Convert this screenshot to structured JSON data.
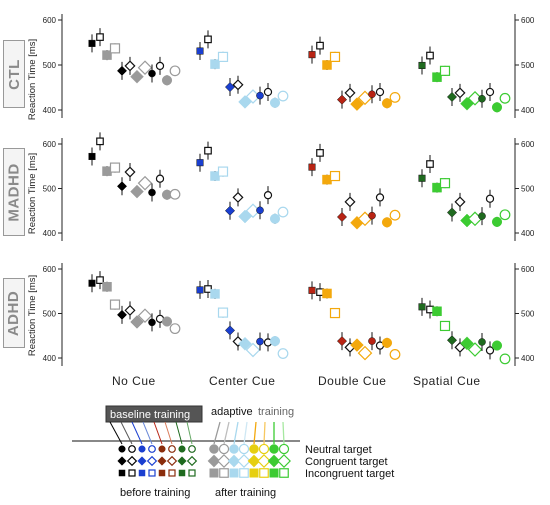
{
  "chart_data": {
    "type": "scatter",
    "panels": [
      {
        "label": "CTL",
        "ylabel": "Reaction Time [ms]",
        "yticks": [
          400,
          500,
          600
        ],
        "ylim": [
          380,
          620
        ]
      },
      {
        "label": "MADHD",
        "ylabel": "Reaction Time [ms]",
        "yticks": [
          400,
          500,
          600
        ],
        "ylim": [
          380,
          620
        ]
      },
      {
        "label": "ADHD",
        "ylabel": "Reaction Time [ms]",
        "yticks": [
          400,
          500,
          600
        ],
        "ylim": [
          380,
          620
        ]
      }
    ],
    "categories": [
      "No Cue",
      "Center Cue",
      "Double Cue",
      "Spatial Cue"
    ],
    "target_types": [
      "Neutral",
      "Congruent",
      "Incongruent"
    ],
    "colors": {
      "No Cue": {
        "dark": "#000000",
        "light": "#9a9a9a"
      },
      "Center Cue": {
        "dark": "#1a3fd0",
        "light": "#a9d8ee"
      },
      "Double Cue": {
        "dark": "#b82414",
        "light": "#f3a80c"
      },
      "Spatial Cue": {
        "dark": "#1f6a1f",
        "light": "#3ccb32"
      }
    },
    "series_note": "values per cue: [Incongruent-before-baseline, Incongruent-before-adaptive, Incongruent-after-baseline, Incongruent-after-adaptive, Congruent-before-baseline, Congruent-before-adaptive, Congruent-after-baseline, Congruent-after-adaptive, Neutral-before-baseline, Neutral-before-adaptive, Neutral-after-baseline, Neutral-after-adaptive]",
    "values": {
      "CTL": {
        "No Cue": [
          548,
          562,
          522,
          537,
          487,
          498,
          474,
          494,
          481,
          498,
          466,
          487
        ],
        "Center Cue": [
          531,
          557,
          502,
          518,
          451,
          456,
          418,
          430,
          432,
          440,
          416,
          431
        ],
        "Double Cue": [
          523,
          543,
          500,
          518,
          423,
          438,
          413,
          427,
          435,
          440,
          415,
          428
        ],
        "Spatial Cue": [
          499,
          521,
          473,
          487,
          429,
          438,
          414,
          426,
          425,
          440,
          406,
          426
        ]
      },
      "MADHD": {
        "No Cue": [
          572,
          606,
          539,
          547,
          505,
          537,
          493,
          512,
          491,
          522,
          486,
          487
        ],
        "Center Cue": [
          558,
          585,
          528,
          538,
          450,
          480,
          437,
          450,
          451,
          485,
          432,
          447
        ],
        "Double Cue": [
          548,
          580,
          520,
          528,
          436,
          470,
          423,
          432,
          439,
          480,
          424,
          440
        ],
        "Spatial Cue": [
          523,
          555,
          502,
          512,
          446,
          470,
          428,
          432,
          438,
          477,
          425,
          441
        ]
      },
      "ADHD": {
        "No Cue": [
          568,
          575,
          560,
          520,
          497,
          507,
          481,
          495,
          480,
          488,
          482,
          466
        ],
        "Center Cue": [
          553,
          555,
          544,
          502,
          462,
          437,
          432,
          418,
          437,
          435,
          438,
          410
        ],
        "Double Cue": [
          552,
          548,
          545,
          501,
          438,
          424,
          429,
          411,
          438,
          428,
          434,
          408
        ],
        "Spatial Cue": [
          515,
          509,
          505,
          472,
          440,
          424,
          433,
          419,
          436,
          417,
          428,
          398
        ]
      }
    },
    "legend": {
      "baseline": "baseline training",
      "adaptive": "adaptive",
      "training": "training",
      "neutral": "Neutral target",
      "congruent": "Congruent target",
      "incongruent": "Incongruent target",
      "before": "before training",
      "after": "after training"
    }
  }
}
